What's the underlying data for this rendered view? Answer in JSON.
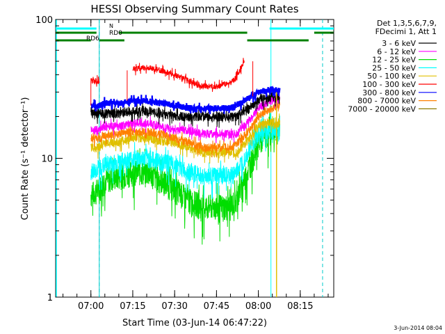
{
  "chart_data": {
    "type": "line",
    "title": "HESSI Observing Summary Count Rates",
    "xlabel": "Start Time (03-Jun-14 06:47:22)",
    "ylabel": "Count Rate (s⁻¹ detector⁻¹)",
    "yscale": "log",
    "ylim": [
      1,
      100
    ],
    "xlim": [
      "06:47:22",
      "08:27:00"
    ],
    "x_ticks": [
      "07:00",
      "07:15",
      "07:30",
      "07:45",
      "08:00",
      "08:15"
    ],
    "y_ticks": [
      "1",
      "10",
      "100"
    ],
    "footer_date": "3-Jun-2014 08:04",
    "legend_title": [
      "Det 1,3,5,6,7,9,",
      "FDecimi 1, Att 1"
    ],
    "x": [
      "07:00",
      "07:03",
      "07:05",
      "07:10",
      "07:15",
      "07:20",
      "07:25",
      "07:30",
      "07:35",
      "07:40",
      "07:45",
      "07:50",
      "07:52",
      "07:55",
      "07:58",
      "08:00",
      "08:03",
      "08:05",
      "08:07"
    ],
    "series": [
      {
        "name": "3 - 6 keV",
        "color": "#000000",
        "values": [
          21,
          21,
          21,
          21,
          22,
          22,
          21,
          20,
          20,
          20,
          20,
          20,
          20,
          22,
          24,
          26,
          27,
          28,
          28
        ]
      },
      {
        "name": "6 - 12 keV",
        "color": "#ff00ff",
        "values": [
          16,
          16,
          17,
          17,
          18,
          18,
          17,
          16,
          16,
          15,
          15,
          15,
          15,
          17,
          20,
          23,
          25,
          26,
          27
        ]
      },
      {
        "name": "12 - 25 keV",
        "color": "#00dd00",
        "values": [
          5.5,
          6,
          7,
          7.5,
          8,
          8,
          7,
          6,
          5,
          4.5,
          4.5,
          4.5,
          5,
          7,
          10,
          13,
          15,
          16,
          16
        ]
      },
      {
        "name": "25 - 50 keV",
        "color": "#00ffff",
        "values": [
          8,
          8.5,
          9,
          9.5,
          10,
          10,
          9.5,
          9,
          8,
          7.5,
          7.5,
          7.5,
          8,
          10,
          13,
          15,
          16,
          16,
          16
        ]
      },
      {
        "name": "50 - 100 keV",
        "color": "#e0c000",
        "values": [
          12,
          12,
          13,
          13,
          14,
          14,
          13.5,
          13,
          12,
          11,
          11,
          11,
          11,
          12.5,
          15,
          17,
          18,
          18,
          18
        ]
      },
      {
        "name": "100 - 300 keV",
        "color": "#ff0000",
        "values": [
          36,
          36,
          null,
          null,
          44,
          45,
          43,
          40,
          36,
          33,
          33,
          35,
          38,
          50,
          null,
          null,
          null,
          null,
          null
        ]
      },
      {
        "name": "300 - 800 keV",
        "color": "#0000ff",
        "values": [
          24,
          24,
          25,
          25,
          26,
          26,
          25,
          24,
          23,
          23,
          23,
          23,
          24,
          26,
          28,
          30,
          31,
          31,
          31
        ]
      },
      {
        "name": "800 - 7000 keV",
        "color": "#ff8000",
        "values": [
          14,
          14,
          14.5,
          15,
          15.5,
          15.5,
          15,
          14,
          13,
          12,
          12,
          12,
          12.5,
          14.5,
          17,
          20,
          22,
          23,
          24
        ]
      },
      {
        "name": "7000 - 20000 keV",
        "color": "#8b7a00",
        "values": [
          null,
          null,
          null,
          null,
          null,
          null,
          null,
          null,
          null,
          null,
          null,
          null,
          null,
          null,
          null,
          null,
          null,
          null,
          null
        ]
      }
    ],
    "attenuator_bars": [
      {
        "label": "N",
        "color": "#00ffff",
        "segments": [
          [
            "06:47:22",
            "07:02:00"
          ],
          [
            "08:04:00",
            "08:27:00"
          ]
        ]
      },
      {
        "label": "RD0",
        "color": "#008000",
        "segments": [
          [
            "06:47:22",
            "07:02:00"
          ],
          [
            "07:10:00",
            "07:56:00"
          ],
          [
            "08:20:00",
            "08:27:00"
          ]
        ]
      },
      {
        "label": "RD6",
        "color": "#008000",
        "segments": [
          [
            "06:47:22",
            "07:00:00"
          ],
          [
            "07:03:00",
            "07:12:00"
          ],
          [
            "07:56:00",
            "08:18:00"
          ]
        ]
      }
    ],
    "night_lines": [
      "07:03:00",
      "08:04:30"
    ],
    "saa_lines": [
      "07:03:00",
      "08:23:00"
    ],
    "grid": false,
    "legend_position": "right"
  }
}
